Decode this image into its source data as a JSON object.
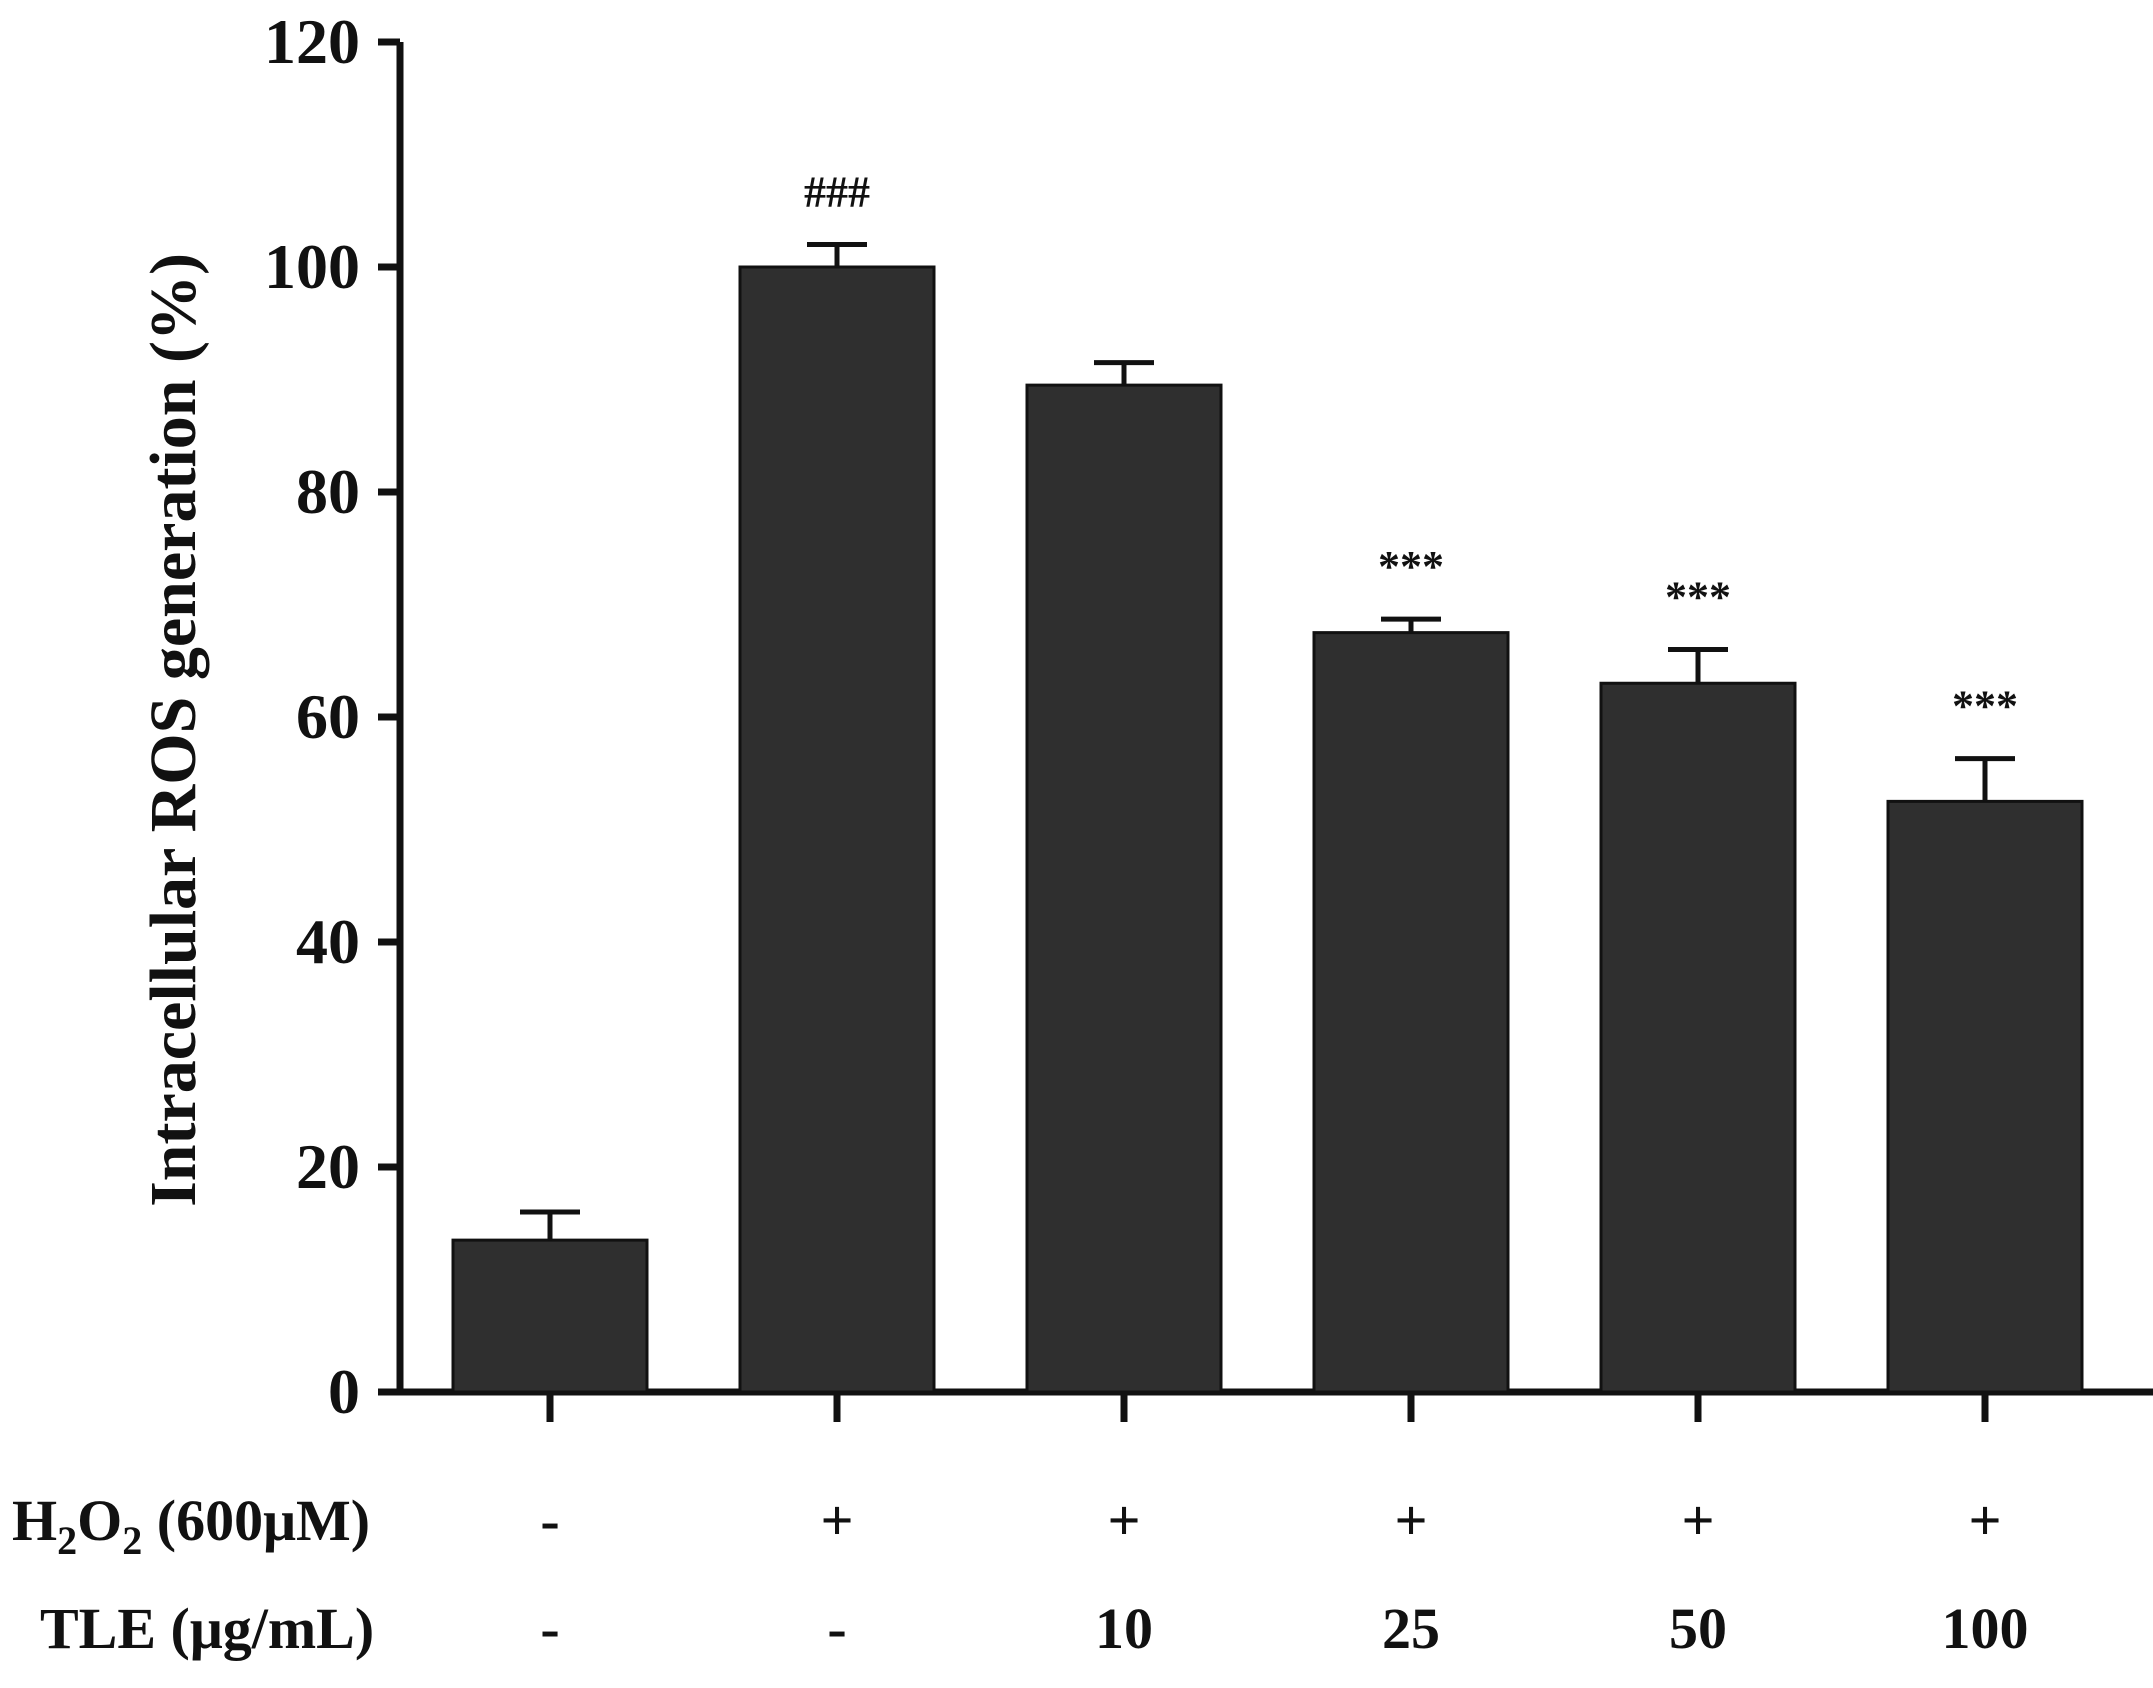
{
  "chart_data": {
    "type": "bar",
    "ylabel": "Intracellular ROS generation (%)",
    "ylim": [
      0,
      120
    ],
    "yticks": [
      0,
      20,
      40,
      60,
      80,
      100,
      120
    ],
    "grid": false,
    "bar_color": "#2f2f2f",
    "values": [
      13.5,
      100,
      89.5,
      67.5,
      63,
      52.5
    ],
    "errors": [
      2.5,
      2,
      2,
      1.2,
      3,
      3.8
    ],
    "significance": [
      "",
      "###",
      "",
      "***",
      "***",
      "***"
    ],
    "conditions": [
      {
        "label_main": "H",
        "label_sub1": "2",
        "label_mid": "O",
        "label_sub2": "2",
        "label_unit": " (600μM)",
        "values": [
          "-",
          "+",
          "+",
          "+",
          "+",
          "+"
        ]
      },
      {
        "label": "TLE (μg/mL)",
        "values": [
          "-",
          "-",
          "10",
          "25",
          "50",
          "100"
        ]
      }
    ]
  }
}
